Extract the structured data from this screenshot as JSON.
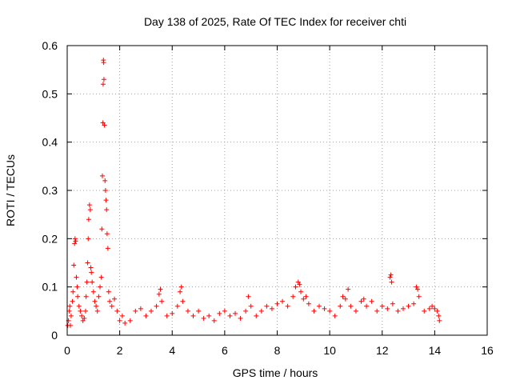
{
  "chart_data": {
    "type": "scatter",
    "title": "Day 138 of 2025, Rate Of TEC Index for receiver chti",
    "xlabel": "GPS time / hours",
    "ylabel": "ROTI / TECUs",
    "xlim": [
      0,
      16
    ],
    "ylim": [
      0,
      0.6
    ],
    "xticks": [
      0,
      2,
      4,
      6,
      8,
      10,
      12,
      14,
      16
    ],
    "yticks": [
      0,
      0.1,
      0.2,
      0.3,
      0.4,
      0.5,
      0.6
    ],
    "ytick_labels": [
      "0",
      "0.1",
      "0.2",
      "0.3",
      "0.4",
      "0.5",
      "0.6"
    ],
    "grid": true,
    "marker": "+",
    "color": "#ff0000",
    "series": [
      {
        "name": "ROTI",
        "points": [
          [
            0.02,
            0.02
          ],
          [
            0.05,
            0.03
          ],
          [
            0.08,
            0.05
          ],
          [
            0.1,
            0.06
          ],
          [
            0.12,
            0.02
          ],
          [
            0.15,
            0.04
          ],
          [
            0.2,
            0.07
          ],
          [
            0.22,
            0.09
          ],
          [
            0.25,
            0.145
          ],
          [
            0.28,
            0.19
          ],
          [
            0.3,
            0.2
          ],
          [
            0.32,
            0.195
          ],
          [
            0.35,
            0.12
          ],
          [
            0.38,
            0.1
          ],
          [
            0.4,
            0.08
          ],
          [
            0.45,
            0.06
          ],
          [
            0.5,
            0.05
          ],
          [
            0.55,
            0.04
          ],
          [
            0.6,
            0.03
          ],
          [
            0.65,
            0.035
          ],
          [
            0.7,
            0.05
          ],
          [
            0.72,
            0.08
          ],
          [
            0.75,
            0.11
          ],
          [
            0.78,
            0.15
          ],
          [
            0.8,
            0.2
          ],
          [
            0.82,
            0.24
          ],
          [
            0.85,
            0.27
          ],
          [
            0.88,
            0.26
          ],
          [
            0.9,
            0.14
          ],
          [
            0.92,
            0.13
          ],
          [
            0.95,
            0.11
          ],
          [
            1.0,
            0.09
          ],
          [
            1.05,
            0.07
          ],
          [
            1.1,
            0.06
          ],
          [
            1.15,
            0.05
          ],
          [
            1.2,
            0.08
          ],
          [
            1.25,
            0.1
          ],
          [
            1.3,
            0.12
          ],
          [
            1.32,
            0.22
          ],
          [
            1.34,
            0.33
          ],
          [
            1.36,
            0.44
          ],
          [
            1.37,
            0.52
          ],
          [
            1.38,
            0.57
          ],
          [
            1.39,
            0.565
          ],
          [
            1.4,
            0.53
          ],
          [
            1.42,
            0.435
          ],
          [
            1.44,
            0.32
          ],
          [
            1.46,
            0.3
          ],
          [
            1.48,
            0.28
          ],
          [
            1.5,
            0.26
          ],
          [
            1.52,
            0.21
          ],
          [
            1.55,
            0.18
          ],
          [
            1.58,
            0.09
          ],
          [
            1.62,
            0.07
          ],
          [
            1.7,
            0.06
          ],
          [
            1.8,
            0.075
          ],
          [
            1.9,
            0.05
          ],
          [
            2.0,
            0.03
          ],
          [
            2.1,
            0.04
          ],
          [
            2.2,
            0.025
          ],
          [
            2.4,
            0.03
          ],
          [
            2.6,
            0.05
          ],
          [
            2.8,
            0.055
          ],
          [
            3.0,
            0.04
          ],
          [
            3.2,
            0.05
          ],
          [
            3.4,
            0.06
          ],
          [
            3.5,
            0.085
          ],
          [
            3.55,
            0.095
          ],
          [
            3.6,
            0.07
          ],
          [
            3.8,
            0.04
          ],
          [
            4.0,
            0.045
          ],
          [
            4.2,
            0.06
          ],
          [
            4.3,
            0.09
          ],
          [
            4.35,
            0.1
          ],
          [
            4.4,
            0.07
          ],
          [
            4.6,
            0.05
          ],
          [
            4.8,
            0.04
          ],
          [
            5.0,
            0.05
          ],
          [
            5.2,
            0.035
          ],
          [
            5.4,
            0.04
          ],
          [
            5.6,
            0.03
          ],
          [
            5.8,
            0.045
          ],
          [
            6.0,
            0.05
          ],
          [
            6.2,
            0.04
          ],
          [
            6.4,
            0.045
          ],
          [
            6.6,
            0.035
          ],
          [
            6.8,
            0.05
          ],
          [
            6.9,
            0.08
          ],
          [
            7.0,
            0.06
          ],
          [
            7.2,
            0.04
          ],
          [
            7.4,
            0.05
          ],
          [
            7.6,
            0.06
          ],
          [
            7.8,
            0.055
          ],
          [
            8.0,
            0.065
          ],
          [
            8.2,
            0.07
          ],
          [
            8.4,
            0.06
          ],
          [
            8.6,
            0.08
          ],
          [
            8.7,
            0.1
          ],
          [
            8.8,
            0.11
          ],
          [
            8.85,
            0.105
          ],
          [
            8.9,
            0.09
          ],
          [
            9.0,
            0.075
          ],
          [
            9.1,
            0.08
          ],
          [
            9.2,
            0.065
          ],
          [
            9.4,
            0.05
          ],
          [
            9.6,
            0.06
          ],
          [
            9.8,
            0.055
          ],
          [
            10.0,
            0.05
          ],
          [
            10.2,
            0.04
          ],
          [
            10.4,
            0.06
          ],
          [
            10.5,
            0.08
          ],
          [
            10.6,
            0.075
          ],
          [
            10.7,
            0.095
          ],
          [
            10.8,
            0.06
          ],
          [
            11.0,
            0.05
          ],
          [
            11.2,
            0.07
          ],
          [
            11.3,
            0.075
          ],
          [
            11.4,
            0.06
          ],
          [
            11.6,
            0.07
          ],
          [
            11.8,
            0.05
          ],
          [
            12.0,
            0.06
          ],
          [
            12.2,
            0.055
          ],
          [
            12.3,
            0.12
          ],
          [
            12.33,
            0.125
          ],
          [
            12.36,
            0.11
          ],
          [
            12.4,
            0.065
          ],
          [
            12.6,
            0.05
          ],
          [
            12.8,
            0.055
          ],
          [
            13.0,
            0.06
          ],
          [
            13.2,
            0.065
          ],
          [
            13.3,
            0.1
          ],
          [
            13.35,
            0.095
          ],
          [
            13.4,
            0.08
          ],
          [
            13.6,
            0.05
          ],
          [
            13.8,
            0.055
          ],
          [
            13.9,
            0.06
          ],
          [
            14.0,
            0.055
          ],
          [
            14.1,
            0.05
          ],
          [
            14.15,
            0.04
          ],
          [
            14.18,
            0.03
          ]
        ]
      }
    ]
  }
}
